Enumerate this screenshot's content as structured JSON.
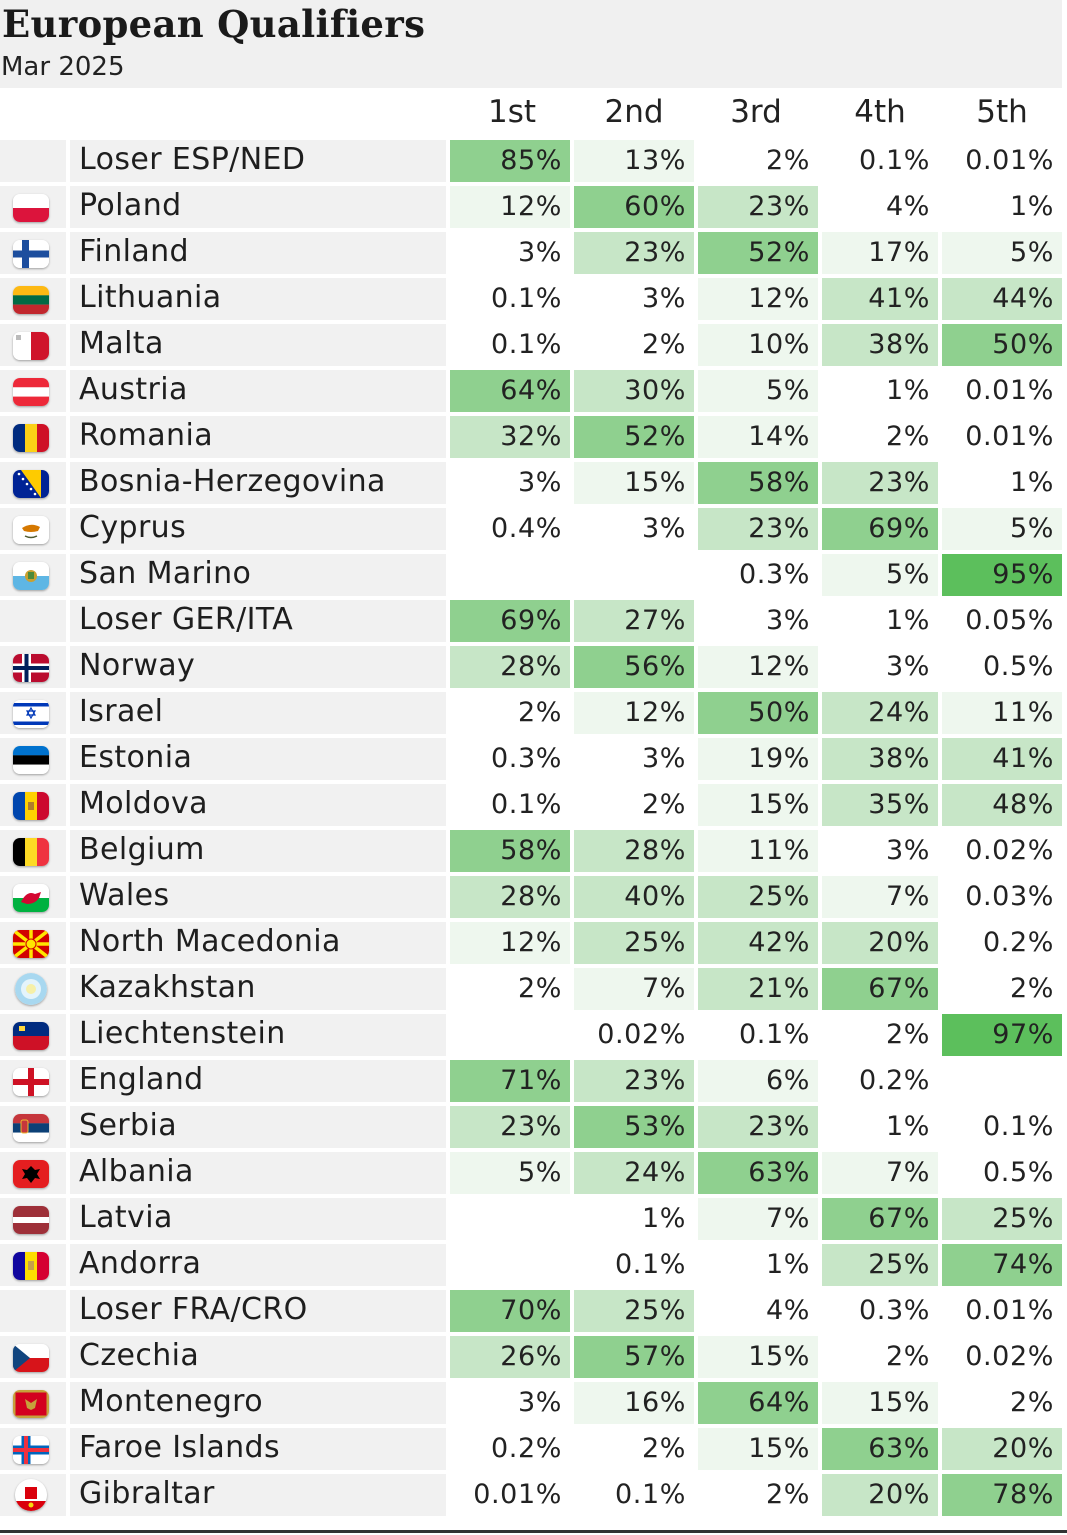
{
  "title": "European Qualifiers",
  "subtitle": "Mar 2025",
  "columns": [
    "1st",
    "2nd",
    "3rd",
    "4th",
    "5th"
  ],
  "colors": {
    "shade_light": "#eef7ee",
    "shade_mid": "#c7e6c7",
    "shade_strong": "#8fd08f",
    "shade_max": "#5cbf5c",
    "cell_background": "#f1f1f1"
  },
  "chart_data": {
    "type": "table",
    "title": "European Qualifiers",
    "subtitle": "Mar 2025",
    "columns": [
      "1st",
      "2nd",
      "3rd",
      "4th",
      "5th"
    ],
    "rows": [
      {
        "team": "Loser ESP/NED",
        "flag": "none",
        "values": [
          "85%",
          "13%",
          "2%",
          "0.1%",
          "0.01%"
        ]
      },
      {
        "team": "Poland",
        "flag": "poland-flag-icon",
        "values": [
          "12%",
          "60%",
          "23%",
          "4%",
          "1%"
        ]
      },
      {
        "team": "Finland",
        "flag": "finland-flag-icon",
        "values": [
          "3%",
          "23%",
          "52%",
          "17%",
          "5%"
        ]
      },
      {
        "team": "Lithuania",
        "flag": "lithuania-flag-icon",
        "values": [
          "0.1%",
          "3%",
          "12%",
          "41%",
          "44%"
        ]
      },
      {
        "team": "Malta",
        "flag": "malta-flag-icon",
        "values": [
          "0.1%",
          "2%",
          "10%",
          "38%",
          "50%"
        ]
      },
      {
        "team": "Austria",
        "flag": "austria-flag-icon",
        "values": [
          "64%",
          "30%",
          "5%",
          "1%",
          "0.01%"
        ]
      },
      {
        "team": "Romania",
        "flag": "romania-flag-icon",
        "values": [
          "32%",
          "52%",
          "14%",
          "2%",
          "0.01%"
        ]
      },
      {
        "team": "Bosnia-Herzegovina",
        "flag": "bosnia-flag-icon",
        "values": [
          "3%",
          "15%",
          "58%",
          "23%",
          "1%"
        ]
      },
      {
        "team": "Cyprus",
        "flag": "cyprus-flag-icon",
        "values": [
          "0.4%",
          "3%",
          "23%",
          "69%",
          "5%"
        ]
      },
      {
        "team": "San Marino",
        "flag": "san-marino-flag-icon",
        "values": [
          "",
          "",
          "0.3%",
          "5%",
          "95%"
        ]
      },
      {
        "team": "Loser GER/ITA",
        "flag": "none",
        "values": [
          "69%",
          "27%",
          "3%",
          "1%",
          "0.05%"
        ]
      },
      {
        "team": "Norway",
        "flag": "norway-flag-icon",
        "values": [
          "28%",
          "56%",
          "12%",
          "3%",
          "0.5%"
        ]
      },
      {
        "team": "Israel",
        "flag": "israel-flag-icon",
        "values": [
          "2%",
          "12%",
          "50%",
          "24%",
          "11%"
        ]
      },
      {
        "team": "Estonia",
        "flag": "estonia-flag-icon",
        "values": [
          "0.3%",
          "3%",
          "19%",
          "38%",
          "41%"
        ]
      },
      {
        "team": "Moldova",
        "flag": "moldova-flag-icon",
        "values": [
          "0.1%",
          "2%",
          "15%",
          "35%",
          "48%"
        ]
      },
      {
        "team": "Belgium",
        "flag": "belgium-flag-icon",
        "values": [
          "58%",
          "28%",
          "11%",
          "3%",
          "0.02%"
        ]
      },
      {
        "team": "Wales",
        "flag": "wales-flag-icon",
        "values": [
          "28%",
          "40%",
          "25%",
          "7%",
          "0.03%"
        ]
      },
      {
        "team": "North Macedonia",
        "flag": "north-macedonia-flag-icon",
        "values": [
          "12%",
          "25%",
          "42%",
          "20%",
          "0.2%"
        ]
      },
      {
        "team": "Kazakhstan",
        "flag": "kazakhstan-flag-icon",
        "values": [
          "2%",
          "7%",
          "21%",
          "67%",
          "2%"
        ]
      },
      {
        "team": "Liechtenstein",
        "flag": "liechtenstein-flag-icon",
        "values": [
          "",
          "0.02%",
          "0.1%",
          "2%",
          "97%"
        ]
      },
      {
        "team": "England",
        "flag": "england-flag-icon",
        "values": [
          "71%",
          "23%",
          "6%",
          "0.2%",
          ""
        ]
      },
      {
        "team": "Serbia",
        "flag": "serbia-flag-icon",
        "values": [
          "23%",
          "53%",
          "23%",
          "1%",
          "0.1%"
        ]
      },
      {
        "team": "Albania",
        "flag": "albania-flag-icon",
        "values": [
          "5%",
          "24%",
          "63%",
          "7%",
          "0.5%"
        ]
      },
      {
        "team": "Latvia",
        "flag": "latvia-flag-icon",
        "values": [
          "",
          "1%",
          "7%",
          "67%",
          "25%"
        ]
      },
      {
        "team": "Andorra",
        "flag": "andorra-flag-icon",
        "values": [
          "",
          "0.1%",
          "1%",
          "25%",
          "74%"
        ]
      },
      {
        "team": "Loser FRA/CRO",
        "flag": "none",
        "values": [
          "70%",
          "25%",
          "4%",
          "0.3%",
          "0.01%"
        ]
      },
      {
        "team": "Czechia",
        "flag": "czechia-flag-icon",
        "values": [
          "26%",
          "57%",
          "15%",
          "2%",
          "0.02%"
        ]
      },
      {
        "team": "Montenegro",
        "flag": "montenegro-flag-icon",
        "values": [
          "3%",
          "16%",
          "64%",
          "15%",
          "2%"
        ]
      },
      {
        "team": "Faroe Islands",
        "flag": "faroe-islands-flag-icon",
        "values": [
          "0.2%",
          "2%",
          "15%",
          "63%",
          "20%"
        ]
      },
      {
        "team": "Gibraltar",
        "flag": "gibraltar-flag-icon",
        "values": [
          "0.01%",
          "0.1%",
          "2%",
          "20%",
          "78%"
        ]
      }
    ]
  }
}
